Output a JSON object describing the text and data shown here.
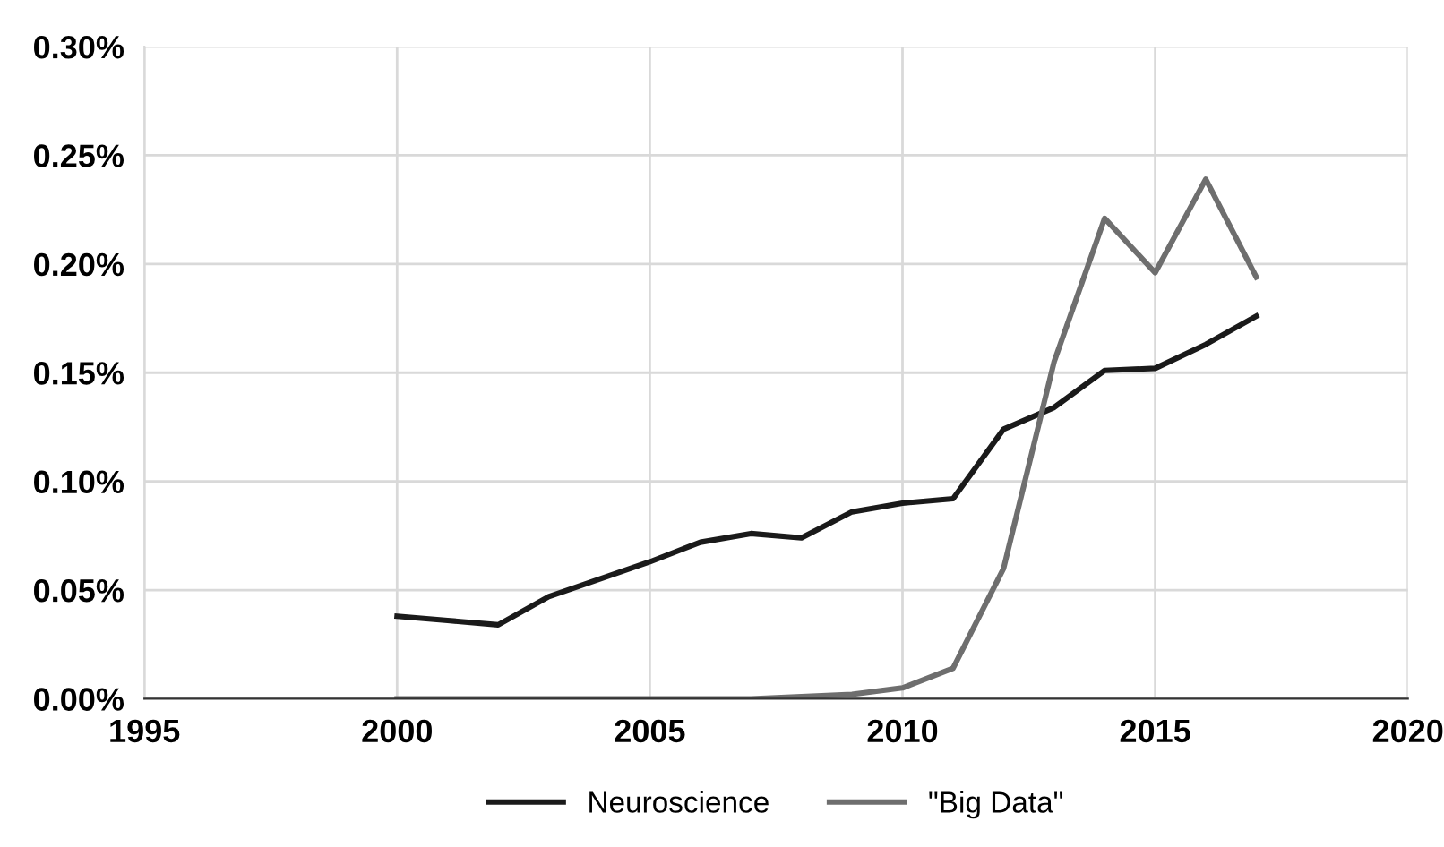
{
  "chart_data": {
    "type": "line",
    "x": [
      2000,
      2001,
      2002,
      2003,
      2004,
      2005,
      2006,
      2007,
      2008,
      2009,
      2010,
      2011,
      2012,
      2013,
      2014,
      2015,
      2016,
      2017
    ],
    "series": [
      {
        "name": "Neuroscience",
        "color": "#1a1a1a",
        "values": [
          0.038,
          0.036,
          0.034,
          0.047,
          0.055,
          0.063,
          0.072,
          0.076,
          0.074,
          0.086,
          0.09,
          0.092,
          0.124,
          0.134,
          0.151,
          0.152,
          0.163,
          0.176
        ]
      },
      {
        "name": "\"Big Data\"",
        "color": "#6e6e6e",
        "values": [
          0,
          0,
          0,
          0,
          0,
          0,
          0,
          0,
          0.001,
          0.002,
          0.005,
          0.014,
          0.06,
          0.155,
          0.221,
          0.196,
          0.239,
          0.194
        ]
      }
    ],
    "xlim": [
      1995,
      2020
    ],
    "xticks": [
      1995,
      2000,
      2005,
      2010,
      2015,
      2020
    ],
    "ylim": [
      0,
      0.3
    ],
    "yticks": [
      {
        "value": 0,
        "label": "0.00%"
      },
      {
        "value": 0.05,
        "label": "0.05%"
      },
      {
        "value": 0.1,
        "label": "0.10%"
      },
      {
        "value": 0.15,
        "label": "0.15%"
      },
      {
        "value": 0.2,
        "label": "0.20%"
      },
      {
        "value": 0.25,
        "label": "0.25%"
      },
      {
        "value": 0.3,
        "label": "0.30%"
      }
    ],
    "grid": true,
    "legend": "bottom",
    "marker": "none",
    "line_style": "solid"
  }
}
